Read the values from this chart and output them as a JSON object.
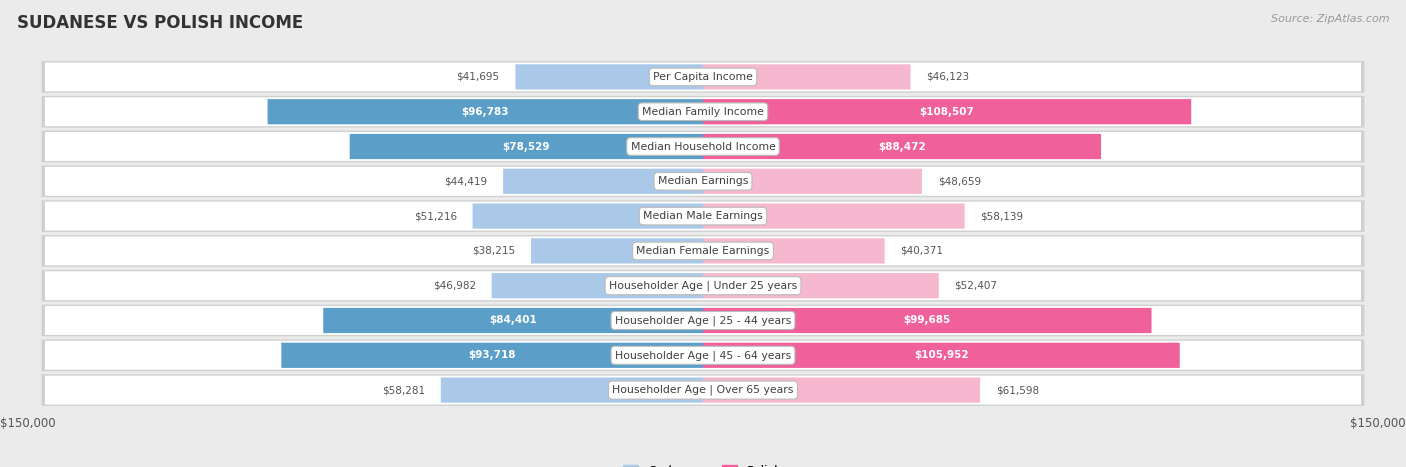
{
  "title": "SUDANESE VS POLISH INCOME",
  "source": "Source: ZipAtlas.com",
  "categories": [
    "Per Capita Income",
    "Median Family Income",
    "Median Household Income",
    "Median Earnings",
    "Median Male Earnings",
    "Median Female Earnings",
    "Householder Age | Under 25 years",
    "Householder Age | 25 - 44 years",
    "Householder Age | 45 - 64 years",
    "Householder Age | Over 65 years"
  ],
  "sudanese": [
    41695,
    96783,
    78529,
    44419,
    51216,
    38215,
    46982,
    84401,
    93718,
    58281
  ],
  "polish": [
    46123,
    108507,
    88472,
    48659,
    58139,
    40371,
    52407,
    99685,
    105952,
    61598
  ],
  "sudanese_labels": [
    "$41,695",
    "$96,783",
    "$78,529",
    "$44,419",
    "$51,216",
    "$38,215",
    "$46,982",
    "$84,401",
    "$93,718",
    "$58,281"
  ],
  "polish_labels": [
    "$46,123",
    "$108,507",
    "$88,472",
    "$48,659",
    "$58,139",
    "$40,371",
    "$52,407",
    "$99,685",
    "$105,952",
    "$61,598"
  ],
  "sudanese_color_light": "#aac9e8",
  "sudanese_color_dark": "#5b9fc8",
  "polish_color_light": "#f5b8cf",
  "polish_color_dark": "#f0609a",
  "sudanese_label_inside": [
    false,
    true,
    true,
    false,
    false,
    false,
    false,
    true,
    true,
    false
  ],
  "polish_label_inside": [
    false,
    true,
    true,
    false,
    false,
    false,
    false,
    true,
    true,
    false
  ],
  "max_value": 150000,
  "bg_color": "#ebebeb",
  "row_bg_color": "#ffffff",
  "row_alt_color": "#f5f5f5"
}
